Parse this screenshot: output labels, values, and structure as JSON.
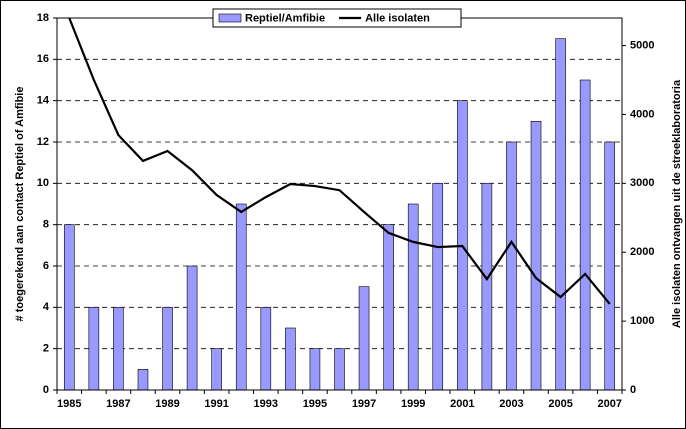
{
  "chart_data": {
    "type": "bar-line",
    "categories": [
      "1985",
      null,
      "1987",
      null,
      "1989",
      null,
      "1991",
      null,
      "1993",
      null,
      "1995",
      null,
      "1997",
      null,
      "1999",
      null,
      "2001",
      null,
      "2003",
      null,
      "2005",
      null,
      "2007"
    ],
    "series": [
      {
        "name": "Reptiel/Amfibie",
        "type": "bar",
        "color": "#9999ff",
        "values": [
          8,
          4,
          4,
          1,
          4,
          6,
          2,
          9,
          4,
          3,
          2,
          2,
          5,
          8,
          9,
          10,
          14,
          10,
          12,
          13,
          17,
          15,
          12
        ]
      },
      {
        "name": "Alle isolaten",
        "type": "line",
        "axis": "y2",
        "color": "#000000",
        "values": [
          5400,
          4500,
          3700,
          3325,
          3470,
          3190,
          2830,
          2585,
          2800,
          2990,
          2960,
          2900,
          2585,
          2280,
          2150,
          2075,
          2090,
          1610,
          2150,
          1625,
          1350,
          1685,
          1250
        ]
      }
    ],
    "y_label": "# toegerekend aan contact Reptiel of Amfibie",
    "y2_label": "Alle isolaten ontvangen uit de streeklaboratoria",
    "ylim": [
      0,
      18
    ],
    "yticks": [
      0,
      2,
      4,
      6,
      8,
      10,
      12,
      14,
      16,
      18
    ],
    "y2lim": [
      0,
      5400
    ],
    "y2ticks": [
      0,
      1000,
      2000,
      3000,
      4000,
      5000
    ],
    "grid": true,
    "legend": "top"
  }
}
